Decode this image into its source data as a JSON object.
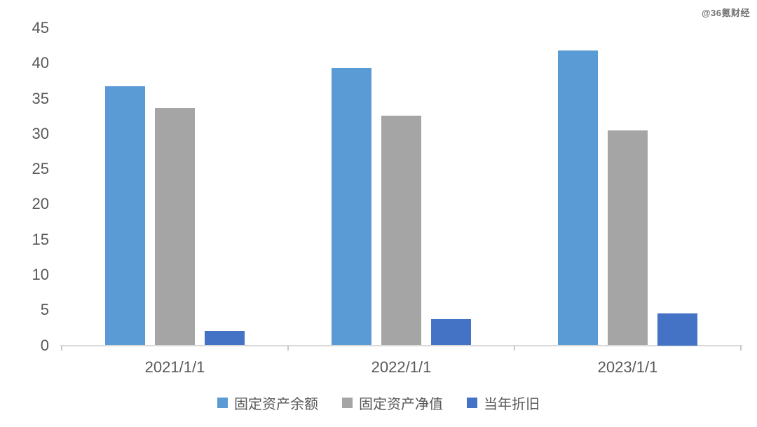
{
  "watermark": "@36氪财经",
  "chart_data": {
    "type": "bar",
    "categories": [
      "2021/1/1",
      "2022/1/1",
      "2023/1/1"
    ],
    "series": [
      {
        "name": "固定资产余额",
        "color": "#5B9BD5",
        "values": [
          36.7,
          39.3,
          41.8
        ]
      },
      {
        "name": "固定资产净值",
        "color": "#A5A5A5",
        "values": [
          33.7,
          32.6,
          30.5
        ]
      },
      {
        "name": "当年折旧",
        "color": "#4472C4",
        "values": [
          2.0,
          3.7,
          4.5
        ]
      }
    ],
    "title": "",
    "xlabel": "",
    "ylabel": "",
    "ylim": [
      0,
      45
    ],
    "ytick_step": 5,
    "grid": false,
    "legend_position": "bottom",
    "axis_color": "#D9D9D9",
    "label_color": "#595959"
  }
}
